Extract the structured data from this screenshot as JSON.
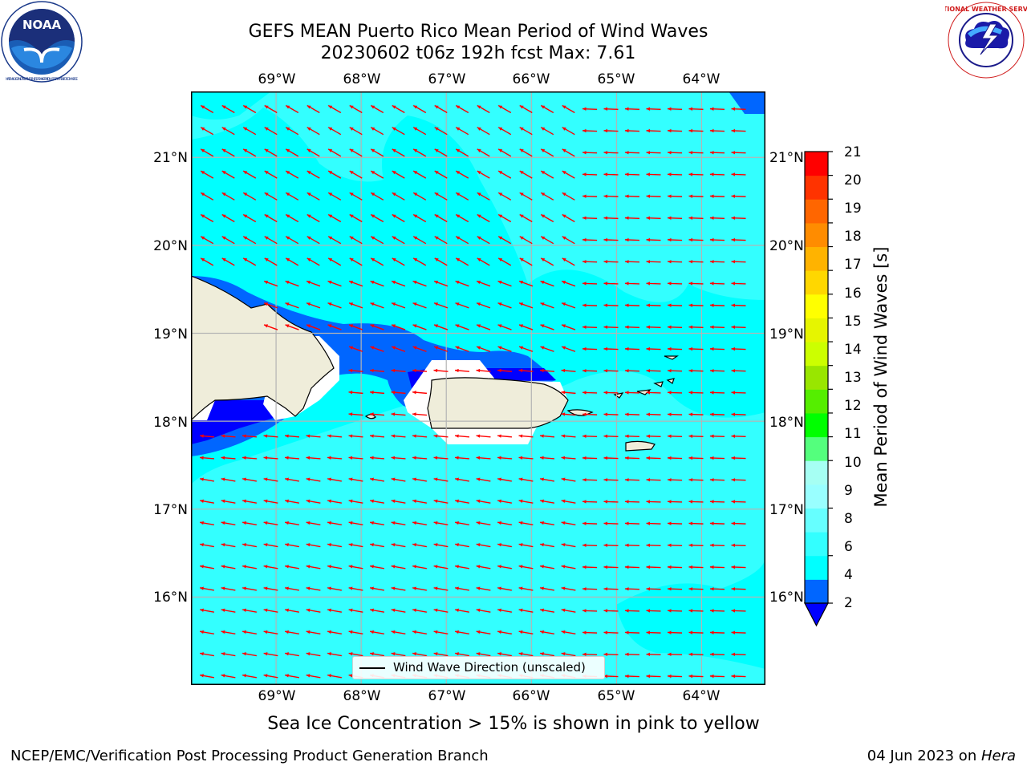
{
  "header": {
    "title": "GEFS MEAN Puerto Rico Mean Period of Wind Waves",
    "subtitle": "20230602 t06z 192h fcst   Max: 7.61"
  },
  "logos": {
    "noaa": {
      "text": "NOAA",
      "ring_text": "NATIONAL OCEANIC AND ATMOSPHERIC ADMINISTRATION · U.S. DEPARTMENT OF COMMERCE"
    },
    "nws": {
      "ring_text": "NATIONAL WEATHER SERVICE"
    }
  },
  "map": {
    "lon_ticks": [
      "69°W",
      "68°W",
      "67°W",
      "66°W",
      "65°W",
      "64°W"
    ],
    "lat_ticks": [
      "21°N",
      "20°N",
      "19°N",
      "18°N",
      "17°N",
      "16°N"
    ],
    "lon_range": [
      -70.0,
      -63.25
    ],
    "lat_range": [
      15.0,
      21.75
    ],
    "arrow_color": "#ff0000",
    "land_color": "#efedda",
    "grid_color": "#b4b4b4"
  },
  "colorbar": {
    "label": "Mean Period of Wind Waves [s]",
    "tick_labels": [
      "21",
      "20",
      "19",
      "18",
      "17",
      "16",
      "15",
      "14",
      "13",
      "12",
      "11",
      "10",
      "9",
      "8",
      "6",
      "4",
      "2"
    ],
    "levels": [
      2,
      3,
      4,
      5,
      6,
      7,
      8,
      9,
      10,
      11,
      12,
      13,
      14,
      15,
      16,
      17,
      18,
      19,
      20,
      21
    ],
    "colors": [
      "#0066ff",
      "#00ffff",
      "#33ffff",
      "#66ffff",
      "#99ffff",
      "#a6fff3",
      "#54ff7d",
      "#00ff00",
      "#55ee00",
      "#99e600",
      "#ccff00",
      "#e6f500",
      "#ffff00",
      "#ffd700",
      "#ffb300",
      "#ff8c00",
      "#ff6600",
      "#ff3300",
      "#ff0000"
    ],
    "under_color": "#0000ff"
  },
  "legend": {
    "label": "Wind Wave Direction (unscaled)"
  },
  "note": "Sea Ice Concentration > 15% is shown in pink to yellow",
  "footer": {
    "left": "NCEP/EMC/Verification Post Processing Product Generation Branch",
    "date": "04 Jun 2023 on ",
    "host": "Hera"
  }
}
